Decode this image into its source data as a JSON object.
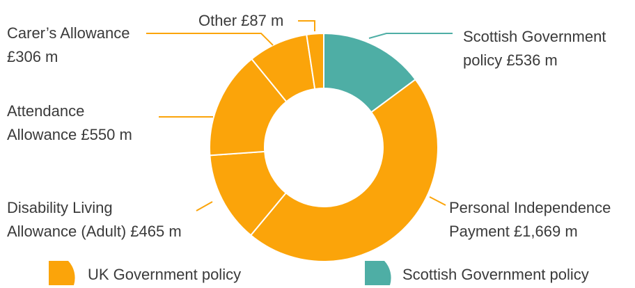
{
  "chart_data": {
    "type": "pie",
    "donut": true,
    "title": "",
    "units": "£ m",
    "slices": [
      {
        "name": "Scottish Government policy",
        "label_lines": [
          "Scottish Government",
          "policy £536 m"
        ],
        "value": 536,
        "group": "Scottish Government policy",
        "color": "#4EAEA5"
      },
      {
        "name": "Personal Independence Payment",
        "label_lines": [
          "Personal Independence",
          "Payment £1,669 m"
        ],
        "value": 1669,
        "group": "UK Government policy",
        "color": "#FBA40A"
      },
      {
        "name": "Disability Living Allowance (Adult)",
        "label_lines": [
          "Disability Living",
          "Allowance (Adult) £465 m"
        ],
        "value": 465,
        "group": "UK Government policy",
        "color": "#FBA40A"
      },
      {
        "name": "Attendance Allowance",
        "label_lines": [
          "Attendance",
          "Allowance  £550 m"
        ],
        "value": 550,
        "group": "UK Government policy",
        "color": "#FBA40A"
      },
      {
        "name": "Carer's Allowance",
        "label_lines": [
          "Carer’s Allowance",
          "£306 m"
        ],
        "value": 306,
        "group": "UK Government policy",
        "color": "#FBA40A"
      },
      {
        "name": "Other",
        "label_lines": [
          "Other £87 m"
        ],
        "value": 87,
        "group": "UK Government policy",
        "color": "#FBA40A"
      }
    ],
    "legend": {
      "position": "bottom",
      "items": [
        {
          "label": "UK Government policy",
          "color": "#FBA40A"
        },
        {
          "label": "Scottish Government policy",
          "color": "#4EAEA5"
        }
      ]
    }
  },
  "colors": {
    "uk": "#FBA40A",
    "scottish": "#4EAEA5",
    "text": "#3a3a3a",
    "slice_border": "#ffffff"
  }
}
